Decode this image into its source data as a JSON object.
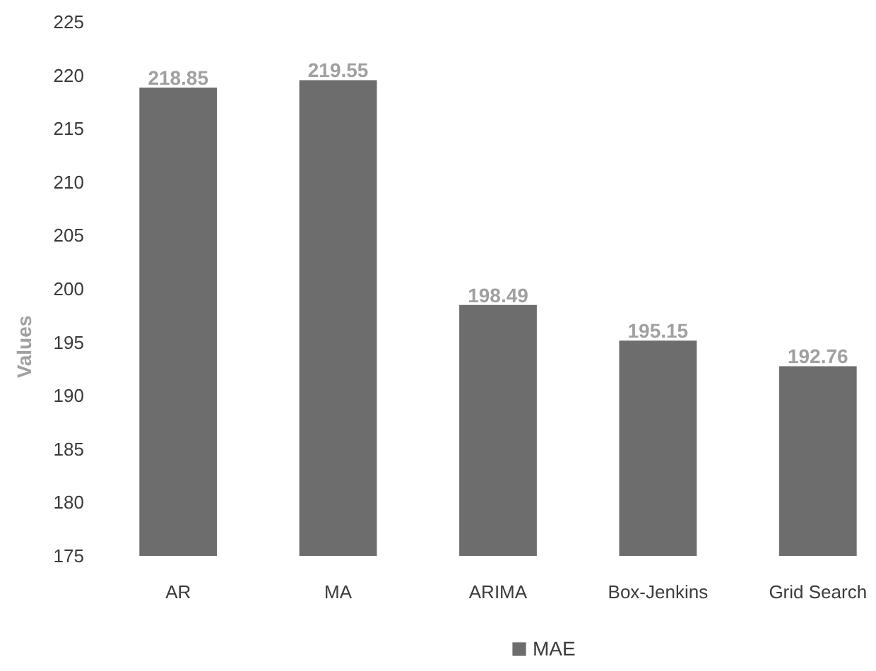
{
  "chart_data": {
    "type": "bar",
    "ylabel": "Values",
    "categories": [
      "AR",
      "MA",
      "ARIMA",
      "Box-Jenkins",
      "Grid Search"
    ],
    "series": [
      {
        "name": "MAE",
        "color": "#6d6d6d",
        "values": [
          218.85,
          219.55,
          198.49,
          195.15,
          192.76
        ]
      }
    ],
    "ylim": [
      175,
      225
    ],
    "yticks": [
      175,
      180,
      185,
      190,
      195,
      200,
      205,
      210,
      215,
      220,
      225
    ],
    "data_labels": true,
    "legend": "bottom",
    "grid": false
  }
}
